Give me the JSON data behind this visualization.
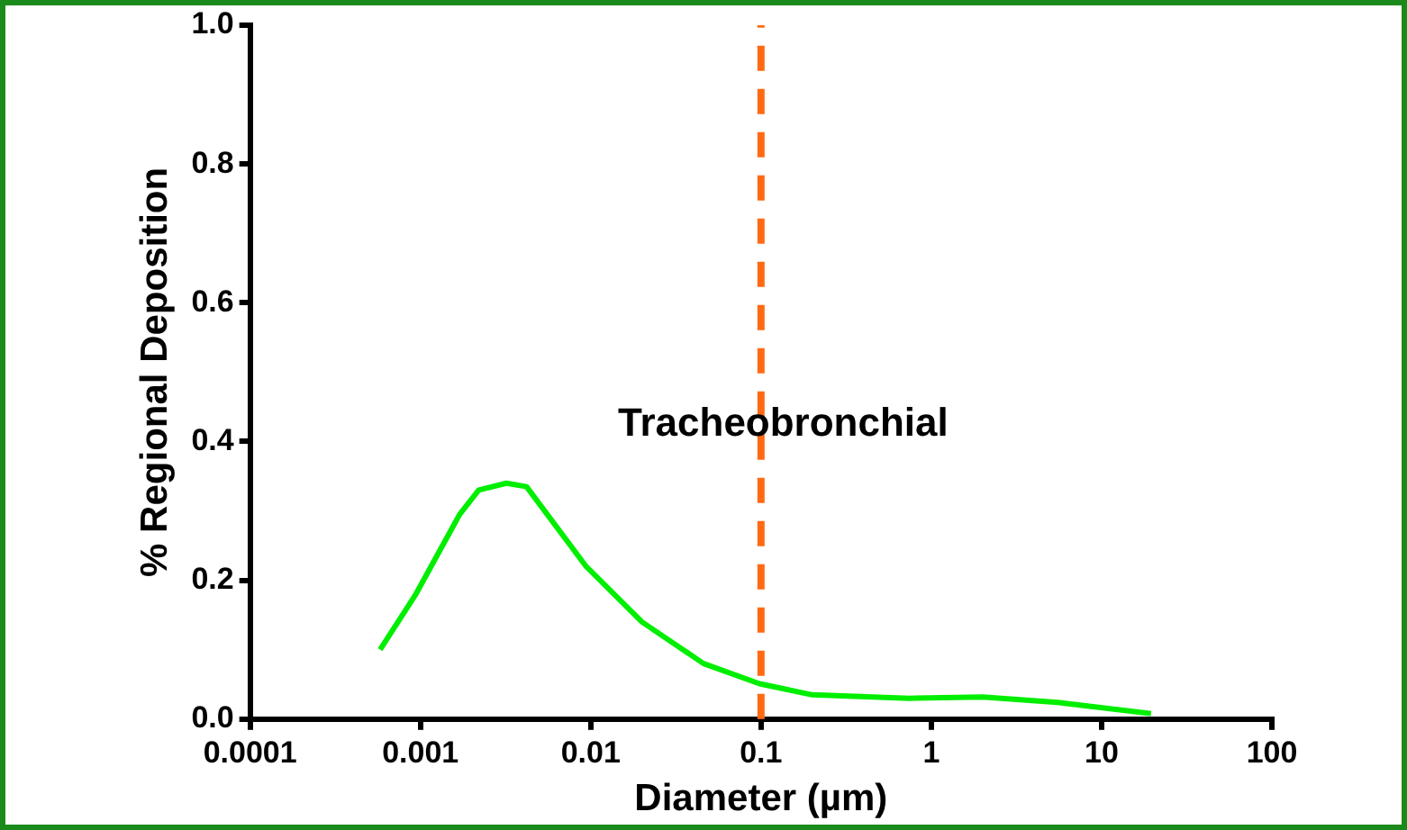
{
  "chart_data": {
    "type": "line",
    "xlabel": "Diameter (µm)",
    "ylabel": "% Regional Deposition",
    "log": "x",
    "xlim": [
      0.0001,
      100
    ],
    "xticks": [
      0.0001,
      0.001,
      0.01,
      0.1,
      1,
      10,
      100
    ],
    "ylim": [
      0,
      1
    ],
    "yticks": [
      {
        "value": 0,
        "label": "0.0"
      },
      0.2,
      0.4,
      0.6,
      0.8,
      {
        "value": 1,
        "label": "1.0"
      }
    ],
    "grid": false,
    "legend": false,
    "marker": "none",
    "line_style": "solid",
    "series": [
      {
        "color": "#00ee00",
        "x": [
          0.00058,
          0.00094,
          0.0017,
          0.0022,
          0.0032,
          0.0042,
          0.0094,
          0.02,
          0.046,
          0.098,
          0.2,
          0.74,
          2.0,
          5.5,
          19.5
        ],
        "values": [
          0.1,
          0.18,
          0.295,
          0.33,
          0.34,
          0.335,
          0.22,
          0.14,
          0.08,
          0.051,
          0.035,
          0.03,
          0.032,
          0.024,
          0.008
        ]
      }
    ],
    "ref_lines": [
      {
        "axis": "x",
        "value": 0.1,
        "color": "#ff6a13",
        "line_style": "dashed"
      }
    ],
    "annotations": [
      "Tracheobronchial"
    ]
  }
}
